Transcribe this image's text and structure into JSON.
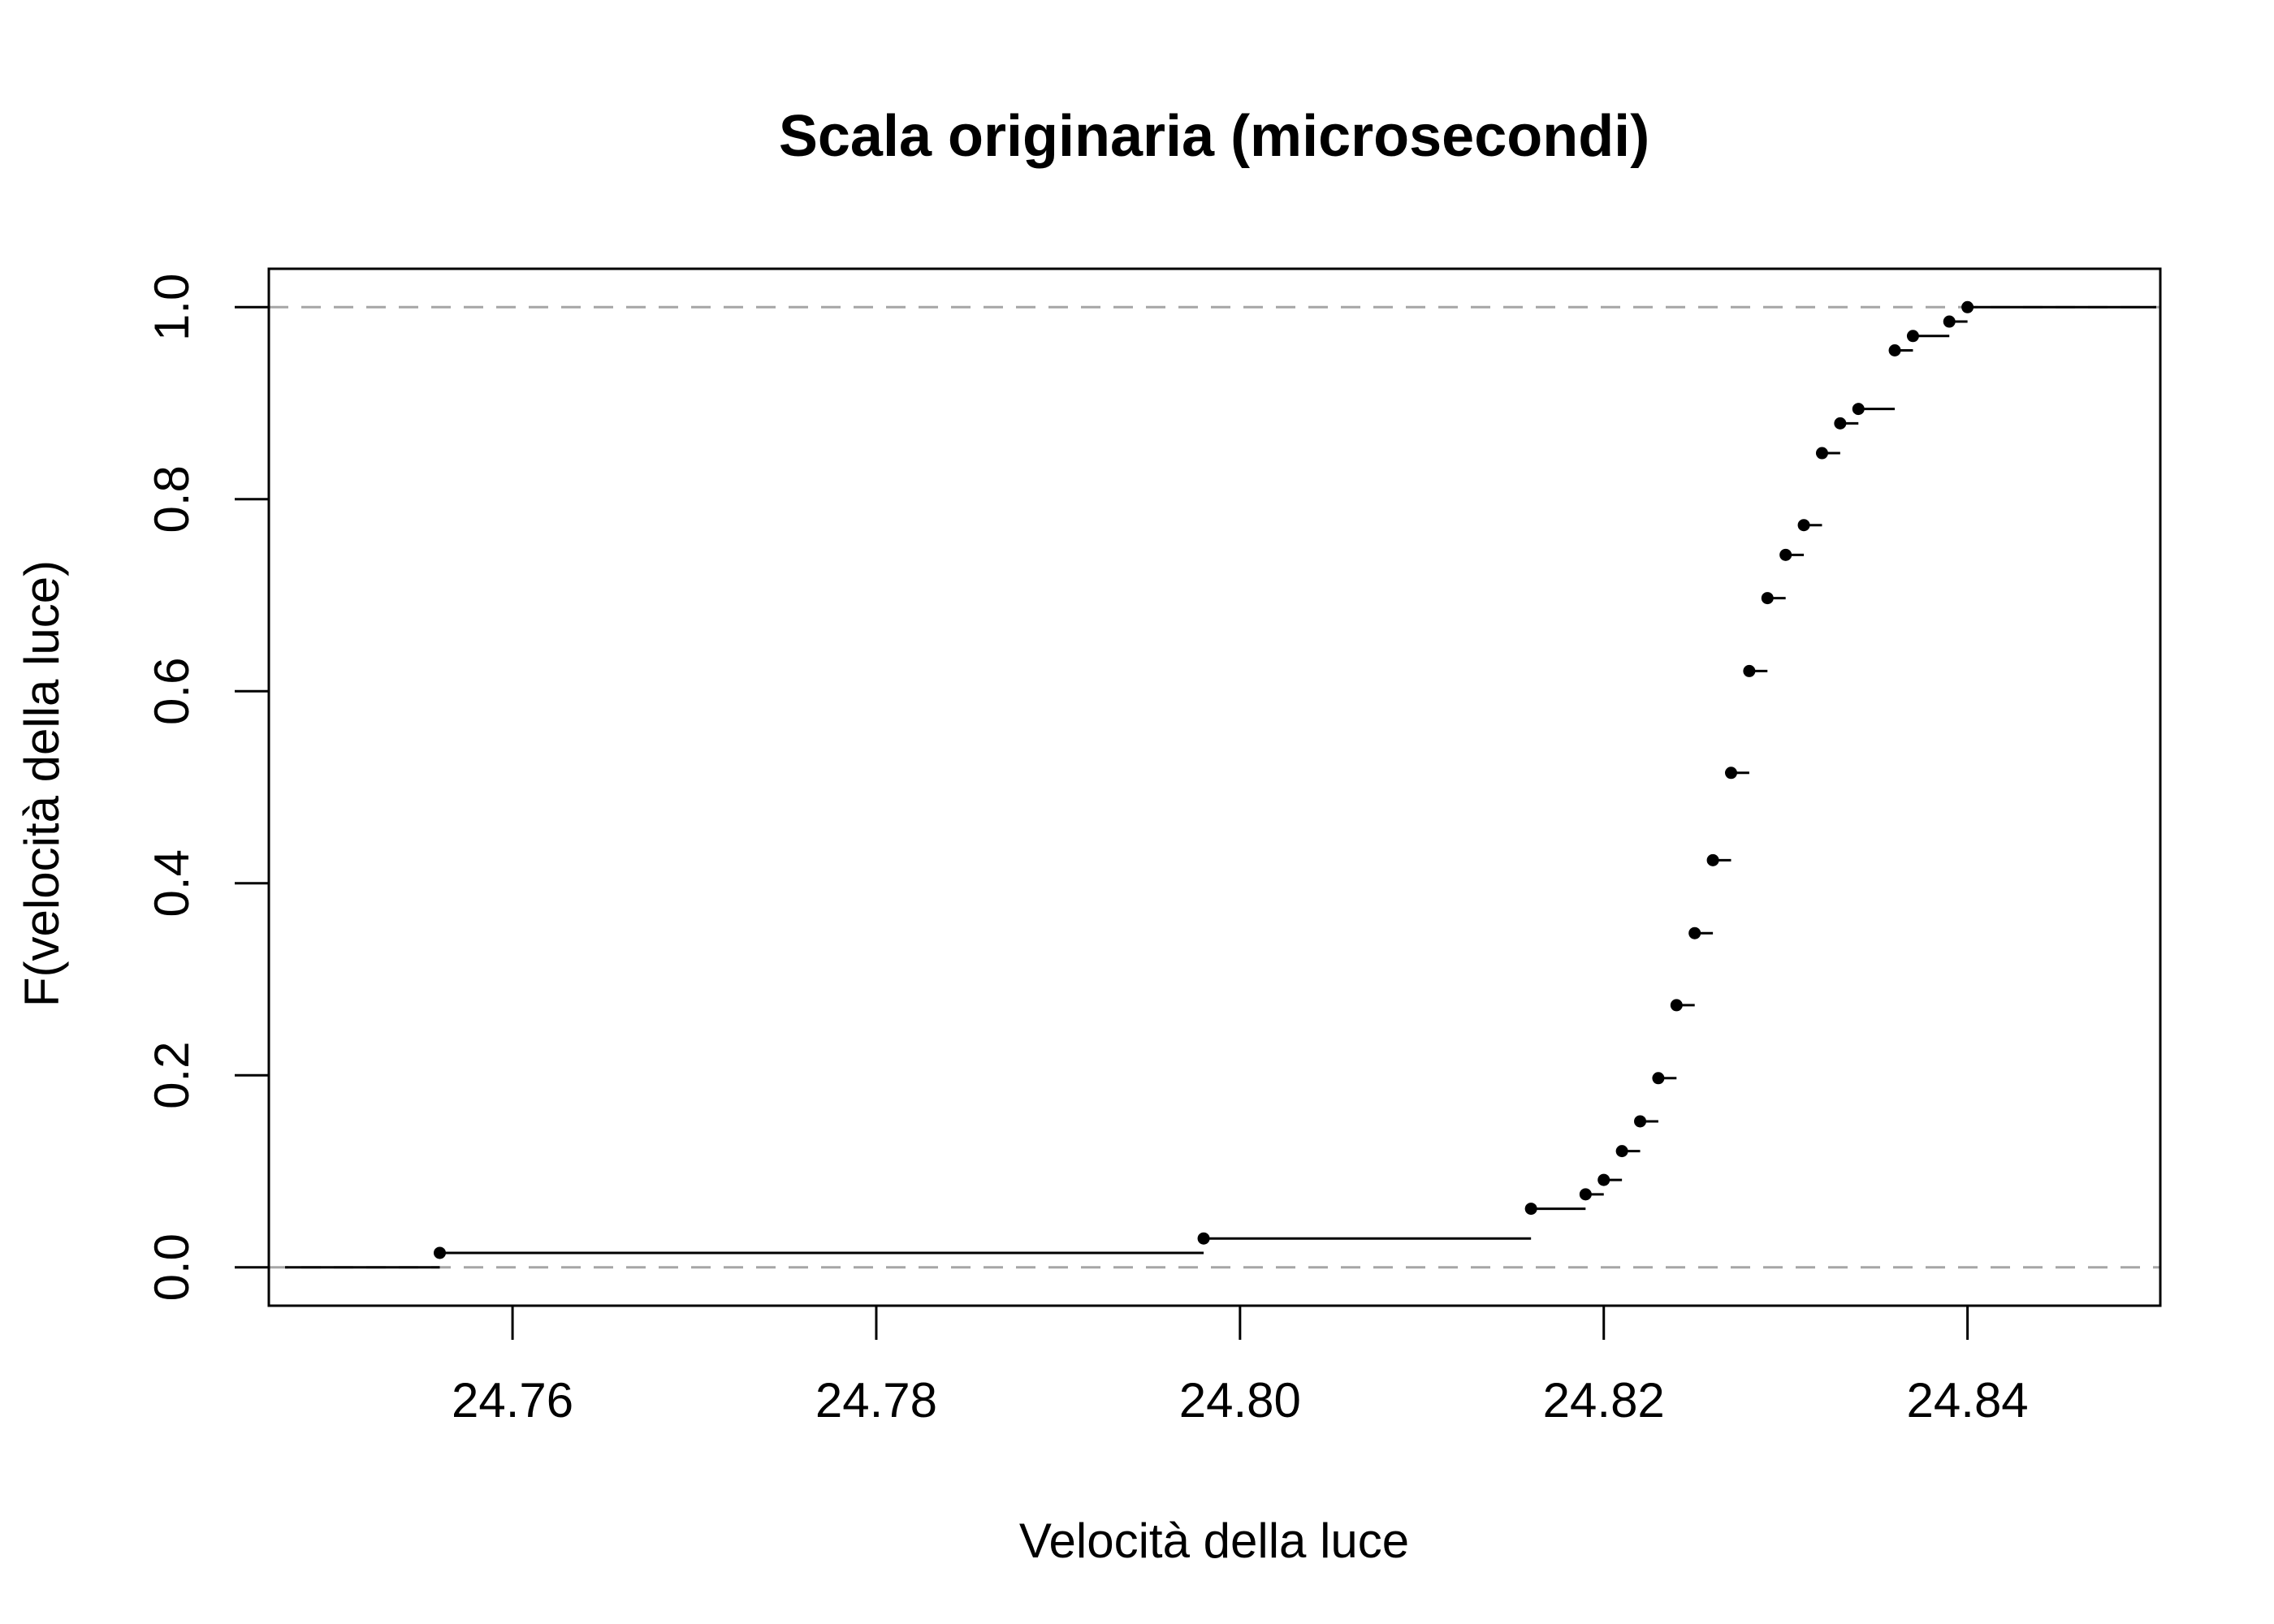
{
  "chart_data": {
    "type": "step",
    "title": "Scala originaria (microsecondi)",
    "xlabel": "Velocità della luce",
    "ylabel": "F(velocità della luce)",
    "xlim": [
      24.7466,
      24.8506
    ],
    "ylim": [
      -0.04,
      1.04
    ],
    "xticks": [
      24.76,
      24.78,
      24.8,
      24.82,
      24.84
    ],
    "xtick_labels": [
      "24.76",
      "24.78",
      "24.80",
      "24.82",
      "24.84"
    ],
    "yticks": [
      0.0,
      0.2,
      0.4,
      0.6,
      0.8,
      1.0
    ],
    "ytick_labels": [
      "0.0",
      "0.2",
      "0.4",
      "0.6",
      "0.8",
      "1.0"
    ],
    "reference_lines": [
      0,
      1
    ],
    "grid": false,
    "points": [
      {
        "x": 24.756,
        "y": 0.015
      },
      {
        "x": 24.798,
        "y": 0.03
      },
      {
        "x": 24.816,
        "y": 0.061
      },
      {
        "x": 24.819,
        "y": 0.076
      },
      {
        "x": 24.82,
        "y": 0.091
      },
      {
        "x": 24.821,
        "y": 0.121
      },
      {
        "x": 24.822,
        "y": 0.152
      },
      {
        "x": 24.823,
        "y": 0.197
      },
      {
        "x": 24.824,
        "y": 0.273
      },
      {
        "x": 24.825,
        "y": 0.348
      },
      {
        "x": 24.826,
        "y": 0.424
      },
      {
        "x": 24.827,
        "y": 0.515
      },
      {
        "x": 24.828,
        "y": 0.621
      },
      {
        "x": 24.829,
        "y": 0.697
      },
      {
        "x": 24.83,
        "y": 0.742
      },
      {
        "x": 24.831,
        "y": 0.773
      },
      {
        "x": 24.832,
        "y": 0.848
      },
      {
        "x": 24.833,
        "y": 0.879
      },
      {
        "x": 24.834,
        "y": 0.894
      },
      {
        "x": 24.836,
        "y": 0.955
      },
      {
        "x": 24.837,
        "y": 0.97
      },
      {
        "x": 24.839,
        "y": 0.985
      },
      {
        "x": 24.84,
        "y": 1.0
      }
    ]
  }
}
